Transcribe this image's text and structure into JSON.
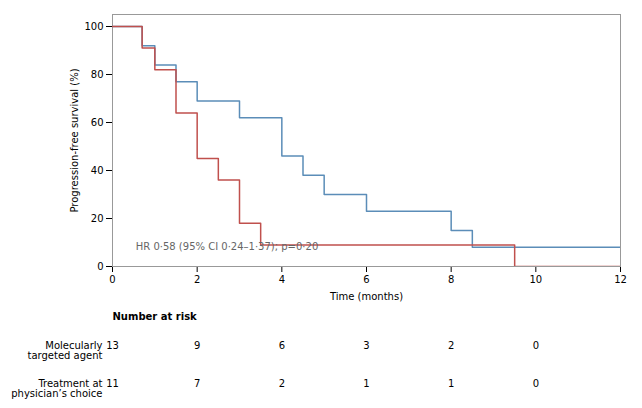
{
  "chart_data": {
    "type": "step",
    "ylabel": "Progression-free survival (%)",
    "xlabel": "Time (months)",
    "annotation": {
      "text": "HR 0·58 (95% CI 0·24–1·37); p=0·20",
      "x": 0.55,
      "y": 7
    },
    "series": [
      {
        "color": "#5b8db8",
        "x": [
          0,
          0.7,
          0.7,
          1.0,
          1.0,
          1.5,
          1.5,
          2.0,
          2.0,
          3.0,
          3.0,
          4.0,
          4.0,
          4.5,
          4.5,
          5.0,
          5.0,
          6.0,
          6.0,
          8.0,
          8.0,
          8.5,
          8.5,
          9.5,
          9.5,
          12
        ],
        "values": [
          100,
          100,
          92,
          92,
          84,
          84,
          77,
          77,
          69,
          69,
          62,
          62,
          46,
          46,
          38,
          38,
          30,
          30,
          23,
          23,
          15,
          15,
          8,
          8,
          8,
          8
        ]
      },
      {
        "color": "#c0504d",
        "x": [
          0,
          0.7,
          0.7,
          1.0,
          1.0,
          1.5,
          1.5,
          2.0,
          2.0,
          2.5,
          2.5,
          3.0,
          3.0,
          3.5,
          3.5,
          4.5,
          4.5,
          9.5,
          9.5,
          9.6,
          9.6,
          12
        ],
        "values": [
          100,
          100,
          91,
          91,
          82,
          82,
          64,
          64,
          45,
          45,
          36,
          36,
          18,
          18,
          9,
          9,
          9,
          9,
          0,
          0,
          0,
          0
        ]
      }
    ],
    "xlim": [
      0,
      12
    ],
    "ylim": [
      0,
      105
    ],
    "xticks": [
      0,
      2,
      4,
      6,
      8,
      10,
      12
    ],
    "yticks": [
      0,
      20,
      40,
      60,
      80,
      100
    ],
    "risk_table": {
      "header": "Number at risk",
      "times": [
        0,
        2,
        4,
        6,
        8,
        10
      ],
      "rows": [
        {
          "label_lines": [
            "Molecularly",
            "targeted agent"
          ],
          "values": [
            13,
            9,
            6,
            3,
            2,
            0
          ]
        },
        {
          "label_lines": [
            "Treatment at",
            "physician’s choice"
          ],
          "values": [
            11,
            7,
            2,
            1,
            1,
            0
          ]
        }
      ]
    }
  }
}
